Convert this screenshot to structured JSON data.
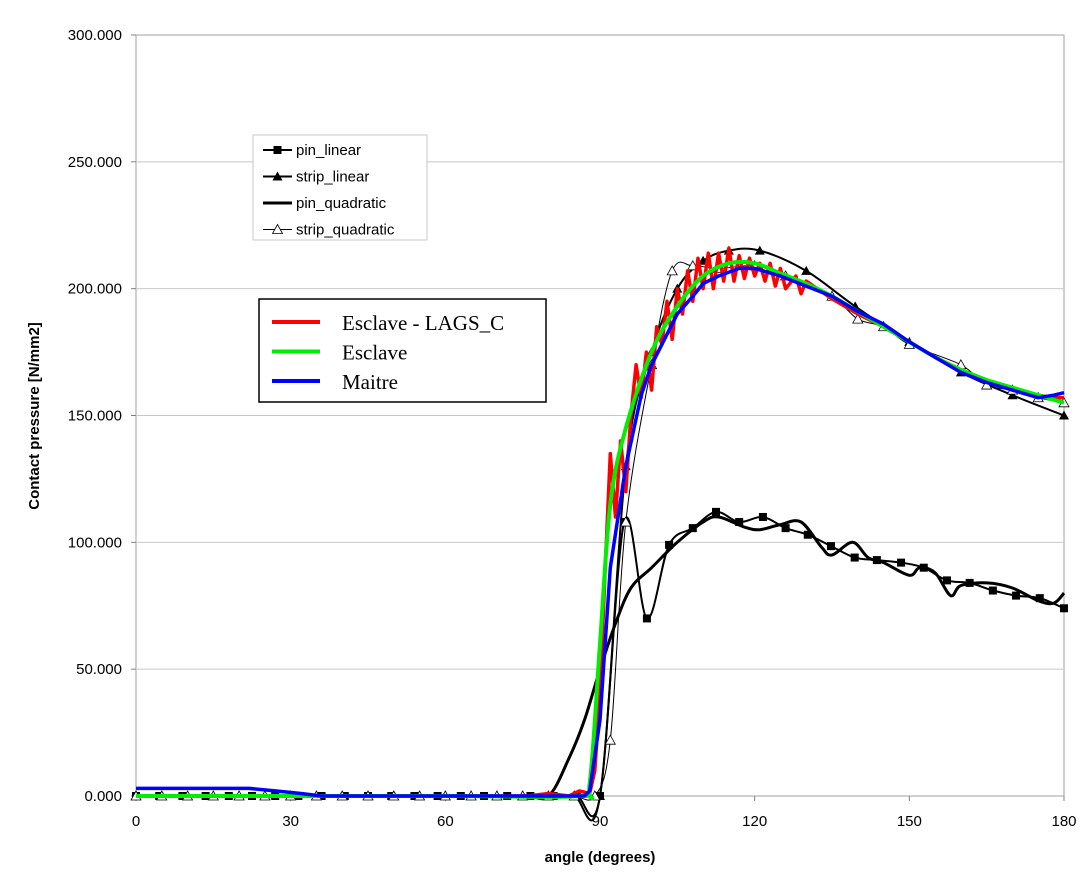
{
  "chart_data": {
    "type": "line",
    "title": "",
    "xlabel": "angle (degrees)",
    "ylabel": "Contact pressure [N/mm2]",
    "xlim": [
      0,
      180
    ],
    "ylim": [
      0,
      300
    ],
    "xticks": [
      0,
      30,
      60,
      90,
      120,
      150,
      180
    ],
    "yticks": [
      0,
      50,
      100,
      150,
      200,
      250,
      300
    ],
    "ytick_labels": [
      "0.000",
      "50.000",
      "100.000",
      "150.000",
      "200.000",
      "250.000",
      "300.000"
    ],
    "grid": "horizontal",
    "legends": [
      {
        "placement": "upper-left",
        "entries": [
          "pin_linear",
          "strip_linear",
          "pin_quadratic",
          "strip_quadratic"
        ]
      },
      {
        "placement": "middle-left",
        "entries": [
          "Esclave - LAGS_C",
          "Esclave",
          "Maitre"
        ]
      }
    ],
    "series": [
      {
        "name": "pin_linear",
        "color": "#000000",
        "marker": "square",
        "smooth": true,
        "x": [
          0,
          4.5,
          9,
          13.5,
          18,
          22.5,
          27,
          31.5,
          36,
          40.5,
          45,
          49.5,
          54,
          58.5,
          63,
          67.5,
          72,
          76.5,
          81,
          85.5,
          90,
          94.7,
          99.1,
          103.4,
          108,
          112.5,
          117,
          121.6,
          126,
          130.3,
          134.8,
          139.4,
          143.7,
          148.4,
          152.8,
          157.3,
          161.7,
          166.2,
          170.7,
          175.3,
          180
        ],
        "y": [
          0,
          0,
          0,
          0,
          0,
          0,
          0,
          0,
          0,
          0,
          0,
          0,
          0,
          0,
          0,
          0,
          0,
          0,
          0,
          0,
          0,
          108,
          70,
          99,
          105.6,
          112,
          108,
          110,
          105.6,
          103,
          98.5,
          94,
          93,
          92,
          90,
          85,
          84,
          81,
          79,
          78,
          74
        ]
      },
      {
        "name": "strip_linear",
        "color": "#000000",
        "marker": "filled-triangle",
        "smooth": true,
        "x": [
          0,
          5,
          10,
          15,
          20,
          25,
          30,
          35,
          40,
          45,
          50,
          55,
          60,
          65,
          70,
          75,
          80,
          85,
          90,
          95,
          100,
          105,
          110,
          115,
          121,
          130,
          139.5,
          150,
          160,
          170,
          180
        ],
        "y": [
          0,
          0,
          0,
          0,
          0,
          0,
          0,
          0,
          0,
          0,
          0,
          0,
          0,
          0,
          0,
          0,
          0,
          0,
          0,
          130,
          175,
          200,
          211,
          215,
          215,
          207,
          193,
          179,
          167,
          158,
          150
        ]
      },
      {
        "name": "pin_quadratic",
        "color": "#000000",
        "marker": "none",
        "smooth": true,
        "x": [
          0,
          30,
          60,
          75,
          80,
          84,
          87,
          90,
          93,
          96,
          100,
          105,
          110,
          113,
          118,
          121,
          125,
          129,
          133,
          135,
          139,
          142,
          145,
          150,
          152,
          155,
          158,
          160,
          165,
          170,
          175,
          178,
          180
        ],
        "y": [
          0,
          0,
          0,
          0,
          0,
          15,
          30,
          50,
          68,
          82,
          90,
          100,
          108,
          110,
          106,
          105,
          107,
          108,
          98,
          95,
          100,
          94,
          92,
          87,
          90,
          88,
          79,
          83,
          84,
          82,
          77,
          76,
          80
        ]
      },
      {
        "name": "strip_quadratic",
        "color": "#000000",
        "marker": "open-triangle",
        "smooth": true,
        "x": [
          0,
          5,
          10,
          15,
          20,
          25,
          30,
          35,
          40,
          45,
          50,
          55,
          60,
          65,
          70,
          75,
          80,
          85,
          89,
          92,
          95,
          100,
          104,
          108,
          113,
          120,
          126,
          135,
          140,
          145,
          150,
          160,
          165,
          170,
          175,
          180
        ],
        "y": [
          0,
          0,
          0,
          0,
          0,
          0,
          0,
          0,
          0,
          0,
          0,
          0,
          0,
          0,
          0,
          0,
          0,
          0,
          0,
          22,
          108,
          170,
          207,
          209,
          208,
          209,
          205,
          197,
          188,
          185,
          178,
          170,
          162,
          160,
          157,
          155
        ]
      },
      {
        "name": "Esclave - LAGS_C",
        "color": "#ff0000",
        "marker": "none",
        "smooth": false,
        "x": [
          0,
          76,
          80,
          84,
          86,
          88,
          89,
          90,
          91,
          92,
          93,
          94,
          95,
          96,
          97,
          98,
          99,
          100,
          101,
          102,
          103,
          104,
          105,
          106,
          107,
          108,
          109,
          110,
          111,
          112,
          113,
          114,
          115,
          116,
          117,
          118,
          119,
          120,
          121,
          122,
          123,
          124,
          125,
          126,
          128,
          129,
          130,
          135,
          140,
          145,
          150,
          155,
          160,
          165,
          170,
          175,
          178,
          180
        ],
        "y": [
          0,
          0,
          1,
          0,
          2,
          1,
          10,
          40,
          90,
          135,
          110,
          140,
          120,
          150,
          170,
          157,
          175,
          160,
          185,
          178,
          195,
          180,
          200,
          190,
          207,
          195,
          212,
          200,
          214,
          200,
          214,
          203,
          216,
          203,
          213,
          204,
          212,
          205,
          210,
          203,
          210,
          201,
          208,
          200,
          205,
          198,
          203,
          196,
          190,
          185,
          179,
          173,
          168,
          164,
          160,
          158,
          157,
          157
        ]
      },
      {
        "name": "Esclave",
        "color": "#00ee00",
        "marker": "none",
        "smooth": true,
        "x": [
          0,
          60,
          86,
          88,
          90,
          92,
          95,
          100,
          105,
          110,
          115,
          120,
          125,
          130,
          135,
          140,
          145,
          150,
          155,
          160,
          165,
          170,
          175,
          180
        ],
        "y": [
          0,
          0,
          0,
          5,
          60,
          115,
          145,
          175,
          193,
          205,
          210,
          210,
          206,
          202,
          197,
          191,
          185,
          179,
          173,
          168,
          164,
          161,
          158,
          155
        ]
      },
      {
        "name": "Maitre",
        "color": "#0000ff",
        "marker": "none",
        "smooth": false,
        "x": [
          0,
          22,
          27,
          32,
          36,
          60,
          87,
          88,
          90,
          92,
          95,
          98,
          100,
          103,
          105,
          108,
          110,
          113,
          117,
          120,
          125,
          130,
          135,
          140,
          145,
          150,
          155,
          160,
          165,
          170,
          175,
          178,
          180
        ],
        "y": [
          3,
          3,
          2,
          1,
          0,
          0,
          0,
          2,
          30,
          90,
          130,
          158,
          170,
          182,
          190,
          197,
          202,
          205,
          208,
          208,
          205,
          201,
          197,
          191,
          186,
          179,
          173,
          167,
          163,
          160,
          157,
          158,
          159
        ]
      }
    ]
  }
}
